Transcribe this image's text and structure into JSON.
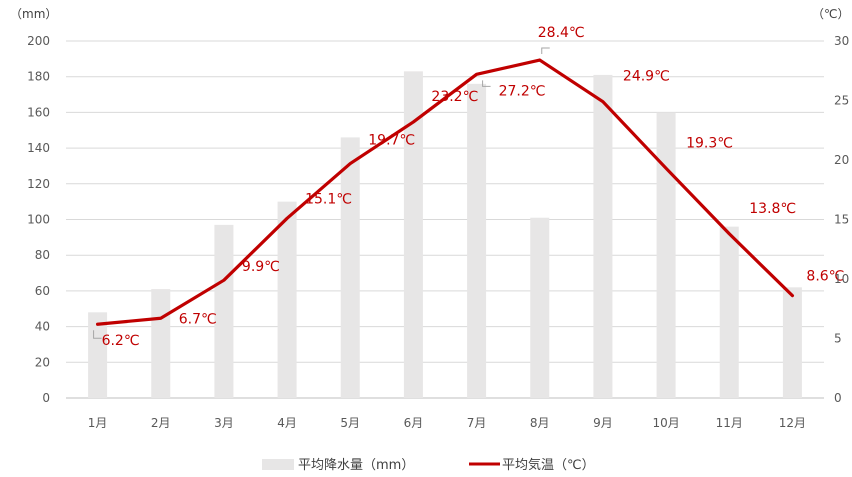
{
  "chart_data": {
    "type": "bar",
    "categories": [
      "1月",
      "2月",
      "3月",
      "4月",
      "5月",
      "6月",
      "7月",
      "8月",
      "9月",
      "10月",
      "11月",
      "12月"
    ],
    "series": [
      {
        "name": "平均降水量（mm）",
        "type": "bar",
        "axis": "left",
        "color": "#E7E6E6",
        "values": [
          48,
          61,
          97,
          110,
          146,
          183,
          176,
          101,
          181,
          160,
          96,
          62
        ]
      },
      {
        "name": "平均気温（℃）",
        "type": "line",
        "axis": "right",
        "color": "#C00000",
        "values": [
          6.2,
          6.7,
          9.9,
          15.1,
          19.7,
          23.2,
          27.2,
          28.4,
          24.9,
          19.3,
          13.8,
          8.6
        ],
        "labels": [
          "6.2℃",
          "6.7℃",
          "9.9℃",
          "15.1℃",
          "19.7℃",
          "23.2℃",
          "27.2℃",
          "28.4℃",
          "24.9℃",
          "19.3℃",
          "13.8℃",
          "8.6℃"
        ]
      }
    ],
    "y_left": {
      "unit_label": "（mm）",
      "ylim": [
        0,
        200
      ],
      "ticks": [
        "0",
        "20",
        "40",
        "60",
        "80",
        "100",
        "120",
        "140",
        "160",
        "180",
        "200"
      ]
    },
    "y_right": {
      "unit_label": "（℃）",
      "ylim": [
        0,
        30
      ],
      "ticks": [
        "0",
        "5",
        "10",
        "15",
        "20",
        "25",
        "30"
      ]
    },
    "grid": true,
    "legend": "bottom",
    "title": ""
  }
}
